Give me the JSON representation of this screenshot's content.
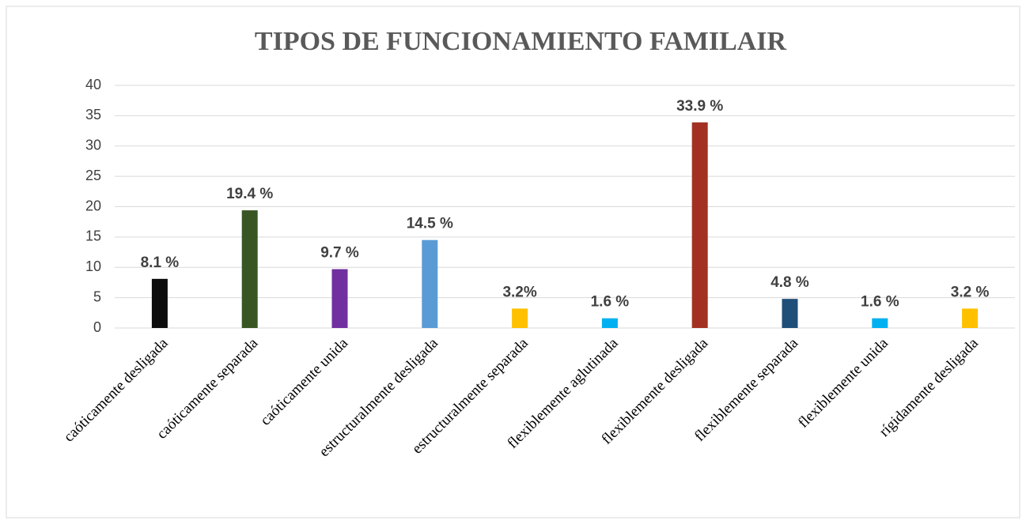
{
  "chart_data": {
    "type": "bar",
    "title": "TIPOS DE FUNCIONAMIENTO FAMILAIR",
    "categories": [
      "caóticamente desligada",
      "caóticamente separada",
      "caóticamente unida",
      "estructuralmente desligada",
      "estructuralmente separada",
      "flexiblemente aglutinada",
      "flexiblemente desligada",
      "flexiblemente separada",
      "flexiblemente unida",
      "rígidamente desligada"
    ],
    "values": [
      8.1,
      19.4,
      9.7,
      14.5,
      3.2,
      1.6,
      33.9,
      4.8,
      1.6,
      3.2
    ],
    "value_labels": [
      "8.1 %",
      "19.4 %",
      "9.7 %",
      "14.5 %",
      "3.2%",
      "1.6 %",
      "33.9 %",
      "4.8 %",
      "1.6 %",
      "3.2 %"
    ],
    "colors": [
      "#0d0d0d",
      "#375623",
      "#7030a0",
      "#5b9bd5",
      "#ffc000",
      "#00b0f0",
      "#a33122",
      "#1f4e79",
      "#00b0f0",
      "#ffc000"
    ],
    "ylim": [
      0,
      40
    ],
    "yticks": [
      0,
      5,
      10,
      15,
      20,
      25,
      30,
      35,
      40
    ],
    "grid": true
  }
}
